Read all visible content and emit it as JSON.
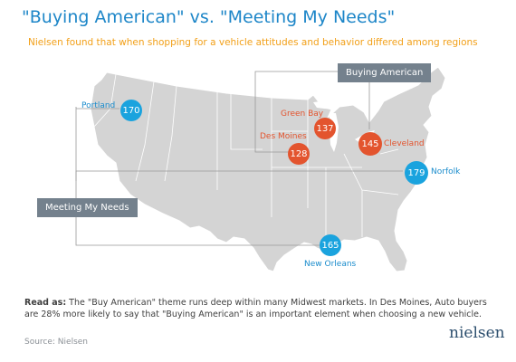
{
  "title": "\"Buying American\" vs. \"Meeting My Needs\"",
  "subtitle": "Nielsen found that when shopping for a vehicle attitudes and behavior differed among regions",
  "callouts": {
    "buying_american": "Buying American",
    "meeting_needs": "Meeting My Needs"
  },
  "markets": [
    {
      "city": "Portland",
      "index": "170",
      "theme": "Meeting My Needs"
    },
    {
      "city": "Green Bay",
      "index": "137",
      "theme": "Buying American"
    },
    {
      "city": "Des Moines",
      "index": "128",
      "theme": "Buying American"
    },
    {
      "city": "Cleveland",
      "index": "145",
      "theme": "Buying American"
    },
    {
      "city": "Norfolk",
      "index": "179",
      "theme": "Meeting My Needs"
    },
    {
      "city": "New Orleans",
      "index": "165",
      "theme": "Meeting My Needs"
    }
  ],
  "note": {
    "lead": "Read as:",
    "text": " The \"Buy American\" theme runs deep within many Midwest markets. In Des Moines, Auto buyers are 28% more likely to say that \"Buying American\" is an important element when choosing a new vehicle."
  },
  "source": "Source: Nielsen",
  "brand": "nielsen",
  "colors": {
    "title": "#1d86c8",
    "subtitle": "#f2a019",
    "buying_american": "#e3542e",
    "meeting_needs": "#1aa3de",
    "map_fill": "#d4d4d4",
    "callout_box": "#74818d"
  }
}
